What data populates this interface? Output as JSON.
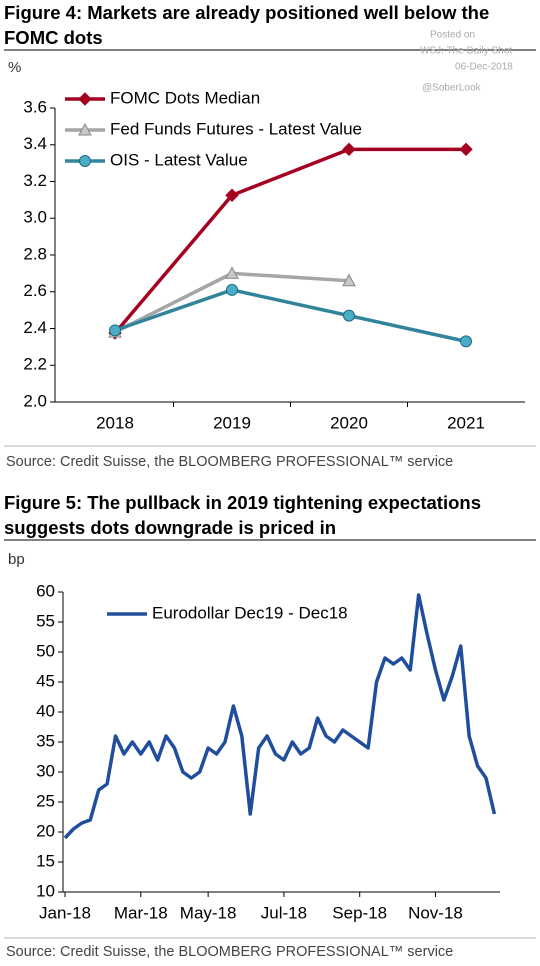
{
  "chart_data": [
    {
      "type": "line",
      "title": "Figure 4: Markets are already positioned well below the FOMC dots",
      "unit_label": "%",
      "source": "Source: Credit Suisse, the BLOOMBERG PROFESSIONAL™ service",
      "annotations": [
        "Posted on",
        "WSJ: The Daily Shot",
        "06-Dec-2018",
        "@SoberLook"
      ],
      "categories": [
        "2018",
        "2019",
        "2020",
        "2021"
      ],
      "ylim": [
        2.0,
        3.6
      ],
      "yticks": [
        {
          "value": 2.0,
          "label": "2.0"
        },
        2.2,
        2.4,
        2.6,
        2.8,
        {
          "value": 3.0,
          "label": "3.0"
        },
        3.2,
        3.4,
        3.6
      ],
      "legend": "upper left",
      "series": [
        {
          "name": "FOMC Dots Median",
          "color": "#a50021",
          "marker": "diamond",
          "values": [
            2.375,
            3.125,
            3.375,
            3.375
          ]
        },
        {
          "name": "Fed Funds Futures - Latest Value",
          "color": "#a6a6a6",
          "marker": "triangle",
          "values": [
            2.38,
            2.7,
            2.66,
            null
          ]
        },
        {
          "name": "OIS - Latest Value",
          "color": "#31849b",
          "marker_color": "#4bacc6",
          "marker": "circle",
          "values": [
            2.39,
            2.61,
            2.47,
            2.33
          ]
        }
      ]
    },
    {
      "type": "line",
      "title": "Figure 5: The pullback in 2019 tightening expectations suggests dots downgrade is priced in",
      "unit_label": "bp",
      "source": "Source: Credit Suisse, the BLOOMBERG PROFESSIONAL™ service",
      "categories": [
        "Jan-18",
        null,
        null,
        null,
        null,
        null,
        null,
        null,
        null,
        "Mar-18",
        null,
        null,
        null,
        null,
        null,
        null,
        null,
        "May-18",
        null,
        null,
        null,
        null,
        null,
        null,
        null,
        null,
        "Jul-18",
        null,
        null,
        null,
        null,
        null,
        null,
        null,
        null,
        "Sep-18",
        null,
        null,
        null,
        null,
        null,
        null,
        null,
        null,
        "Nov-18",
        null,
        null,
        null,
        null,
        null,
        null,
        null
      ],
      "ylim": [
        10,
        60
      ],
      "yticks": [
        10,
        15,
        20,
        25,
        30,
        35,
        40,
        45,
        50,
        55,
        60
      ],
      "legend": "upper left",
      "series": [
        {
          "name": "Eurodollar Dec19 - Dec18",
          "color": "#1f4e9c",
          "marker": "none",
          "values": [
            19,
            20.5,
            21.5,
            22,
            27,
            28,
            36,
            33,
            35,
            33,
            35,
            32,
            36,
            34,
            30,
            29,
            30,
            34,
            33,
            35,
            41,
            36,
            23,
            34,
            36,
            33,
            32,
            35,
            33,
            34,
            39,
            36,
            35,
            37,
            36,
            35,
            34,
            45,
            49,
            48,
            49,
            47,
            59.5,
            53,
            47,
            42,
            46,
            51,
            36,
            31,
            29,
            23
          ]
        }
      ]
    }
  ]
}
